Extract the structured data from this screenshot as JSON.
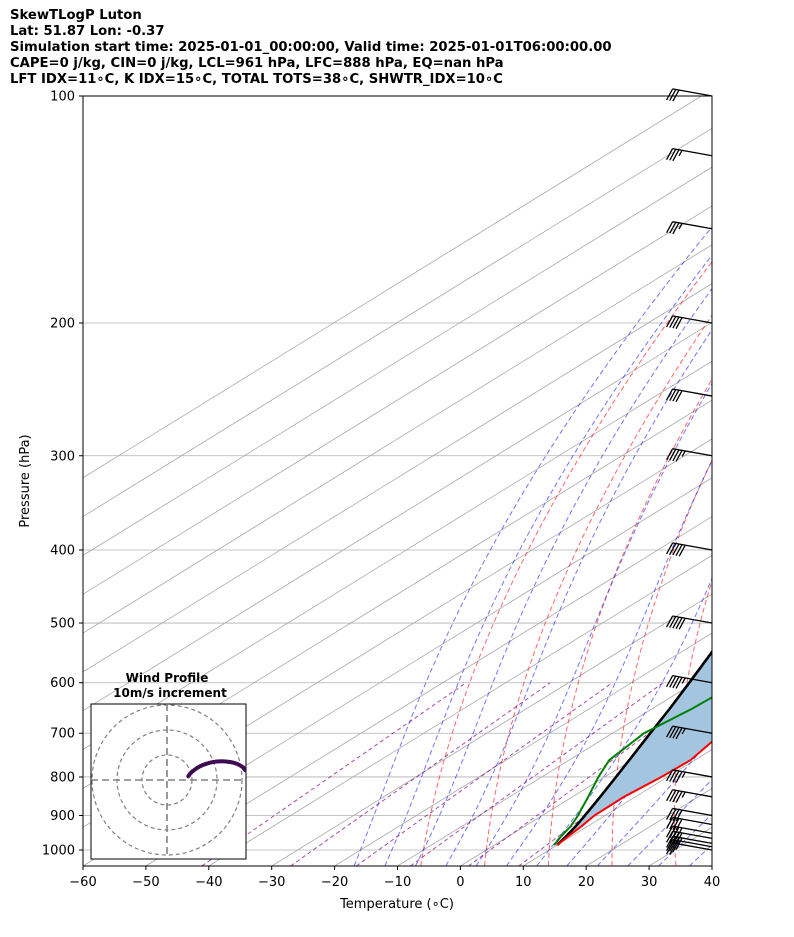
{
  "header": {
    "lines": [
      "SkewTLogP Luton",
      "Lat: 51.87   Lon: -0.37",
      "Simulation start time: 2025-01-01_00:00:00, Valid time: 2025-01-01T06:00:00.00",
      "CAPE=0 j/kg, CIN=0 j/kg, LCL=961 hPa, LFC=888 hPa, EQ=nan hPa",
      "LFT IDX=11∘C, K IDX=15∘C, TOTAL TOTS=38∘C, SHWTR_IDX=10∘C"
    ]
  },
  "chart_data": {
    "type": "line",
    "xlabel": "Temperature (∘C)",
    "ylabel": "Pressure (hPa)",
    "xlim": [
      -60,
      40
    ],
    "ylim": [
      1050,
      100
    ],
    "y_scale": "log",
    "x_ticks": [
      "−60",
      "−50",
      "−40",
      "−30",
      "−20",
      "−10",
      "0",
      "10",
      "20",
      "30",
      "40"
    ],
    "y_ticks": [
      "100",
      "200",
      "300",
      "400",
      "500",
      "600",
      "700",
      "800",
      "900",
      "1000"
    ],
    "grid": true,
    "colors": {
      "temperature": "#ff0000",
      "dewpoint": "#008000",
      "parcel": "#000000",
      "shade": "#a4c5df",
      "dry_adiabats": "#ff0000",
      "moist_adiabats": "#0000ff",
      "mixing_ratio": "#800080",
      "isotherms": "#a9a9a9",
      "hodograph": "#3e0b52"
    },
    "series": [
      {
        "p": [
          985,
          960,
          930,
          900,
          850,
          800,
          760,
          700,
          650,
          600,
          550,
          500,
          450,
          400,
          350,
          300,
          270,
          250,
          230,
          200,
          180,
          170,
          160,
          150,
          140,
          130,
          120,
          110,
          100
        ],
        "values": [
          10,
          9.5,
          9.0,
          8.3,
          8.2,
          9.0,
          9.3,
          7.4,
          6.9,
          6.6,
          5.8,
          4.2,
          2.0,
          0.2,
          -2.5,
          -7.8,
          -11.3,
          -14.1,
          -17.0,
          -21.7,
          -20.8,
          -20.1,
          -18.4,
          -15.0,
          -13.0,
          -10.7,
          -7.6,
          -5.5,
          -2.8
        ]
      },
      {
        "p": [
          985,
          960,
          930,
          900,
          850,
          800,
          760,
          700,
          650,
          600,
          550,
          500,
          450,
          400,
          350,
          300,
          270,
          250,
          230,
          200,
          180,
          170,
          160,
          150,
          140,
          130,
          120,
          110,
          100
        ],
        "values": [
          9.5,
          8.4,
          7.3,
          5.7,
          2.5,
          -1.0,
          -3.6,
          -5.0,
          -3.7,
          -3.1,
          -3.1,
          -3.9,
          -5.7,
          -8.5,
          -13.6,
          -23.0,
          -26.8,
          -26.7,
          -27.7,
          -31.2,
          -28.9,
          -27.8,
          -25.6,
          -21.4,
          -18.5,
          -15.8,
          -13.4,
          -10.0,
          -7.8
        ]
      },
      {
        "p": [
          985,
          960,
          930,
          900,
          850,
          800,
          750,
          700,
          650,
          600,
          550,
          500,
          450,
          400,
          350,
          300,
          250,
          200,
          180,
          160,
          140,
          120,
          100
        ],
        "values": [
          10,
          9.2,
          8.1,
          6.8,
          4.4,
          1.8,
          -1.0,
          -4.0,
          -7.2,
          -10.8,
          -14.8,
          -19.3,
          -24.4,
          -30.3,
          -37.1,
          -45.0,
          -54.5,
          -66.0,
          -71.3,
          -77.2,
          -83.8,
          -91.3,
          -99.8
        ]
      }
    ],
    "winds": {
      "p": [
        1000,
        990,
        980,
        965,
        950,
        925,
        900,
        850,
        800,
        700,
        600,
        500,
        400,
        300,
        250,
        200,
        150,
        120,
        100
      ],
      "speed_kt": [
        25,
        30,
        35,
        40,
        40,
        40,
        40,
        45,
        45,
        45,
        45,
        50,
        50,
        45,
        40,
        40,
        35,
        35,
        30
      ]
    },
    "hodograph": {
      "title": "Wind Profile",
      "subtitle": "10m/s increment",
      "u": [
        8.5,
        9.2,
        10.0,
        11.0,
        12.0,
        13.0,
        14.3,
        15.7,
        17.0,
        18.5,
        20.0,
        21.8,
        23.5,
        25.2,
        26.8,
        28.0,
        29.2,
        30.5,
        31.2
      ],
      "v": [
        1.5,
        2.5,
        3.3,
        4.1,
        4.8,
        5.4,
        6.0,
        6.5,
        6.9,
        7.2,
        7.4,
        7.5,
        7.4,
        7.2,
        6.9,
        6.5,
        5.9,
        5.0,
        4.0
      ],
      "rings": [
        10,
        20,
        30
      ]
    }
  }
}
